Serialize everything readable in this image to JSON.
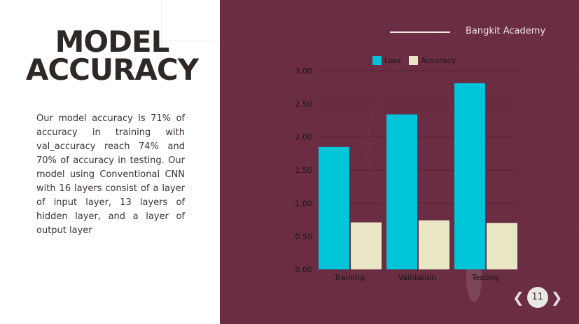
{
  "slide": {
    "title_lines": [
      "MODEL",
      "ACCURACY"
    ],
    "body": "Our model accuracy is 71% of accuracy in training with val_accuracy reach 74% and 70% of accuracy in testing. Our model using Conventional CNN with 16 layers consist of a layer of input layer, 13 layers of hidden layer, and a layer of output layer",
    "brand": "Bangkit Academy",
    "page_number": "11",
    "prev_arrow": "❮",
    "next_arrow": "❯"
  },
  "colors": {
    "loss": "#00c5d9",
    "accuracy": "#e9e6c5",
    "panel": "#6a2d43",
    "text_light": "#f1e6dc"
  },
  "chart_data": {
    "type": "bar",
    "categories": [
      "Training",
      "Validation",
      "Testing"
    ],
    "series": [
      {
        "name": "Loss",
        "values": [
          1.85,
          2.34,
          2.81
        ]
      },
      {
        "name": "Accuracy",
        "values": [
          0.71,
          0.74,
          0.7
        ]
      }
    ],
    "yticks": [
      "0.00",
      "0.50",
      "1.00",
      "1.50",
      "2.00",
      "2.50",
      "3.00"
    ],
    "ylim": [
      0,
      3.0
    ],
    "grid": true,
    "legend": "top-center"
  }
}
